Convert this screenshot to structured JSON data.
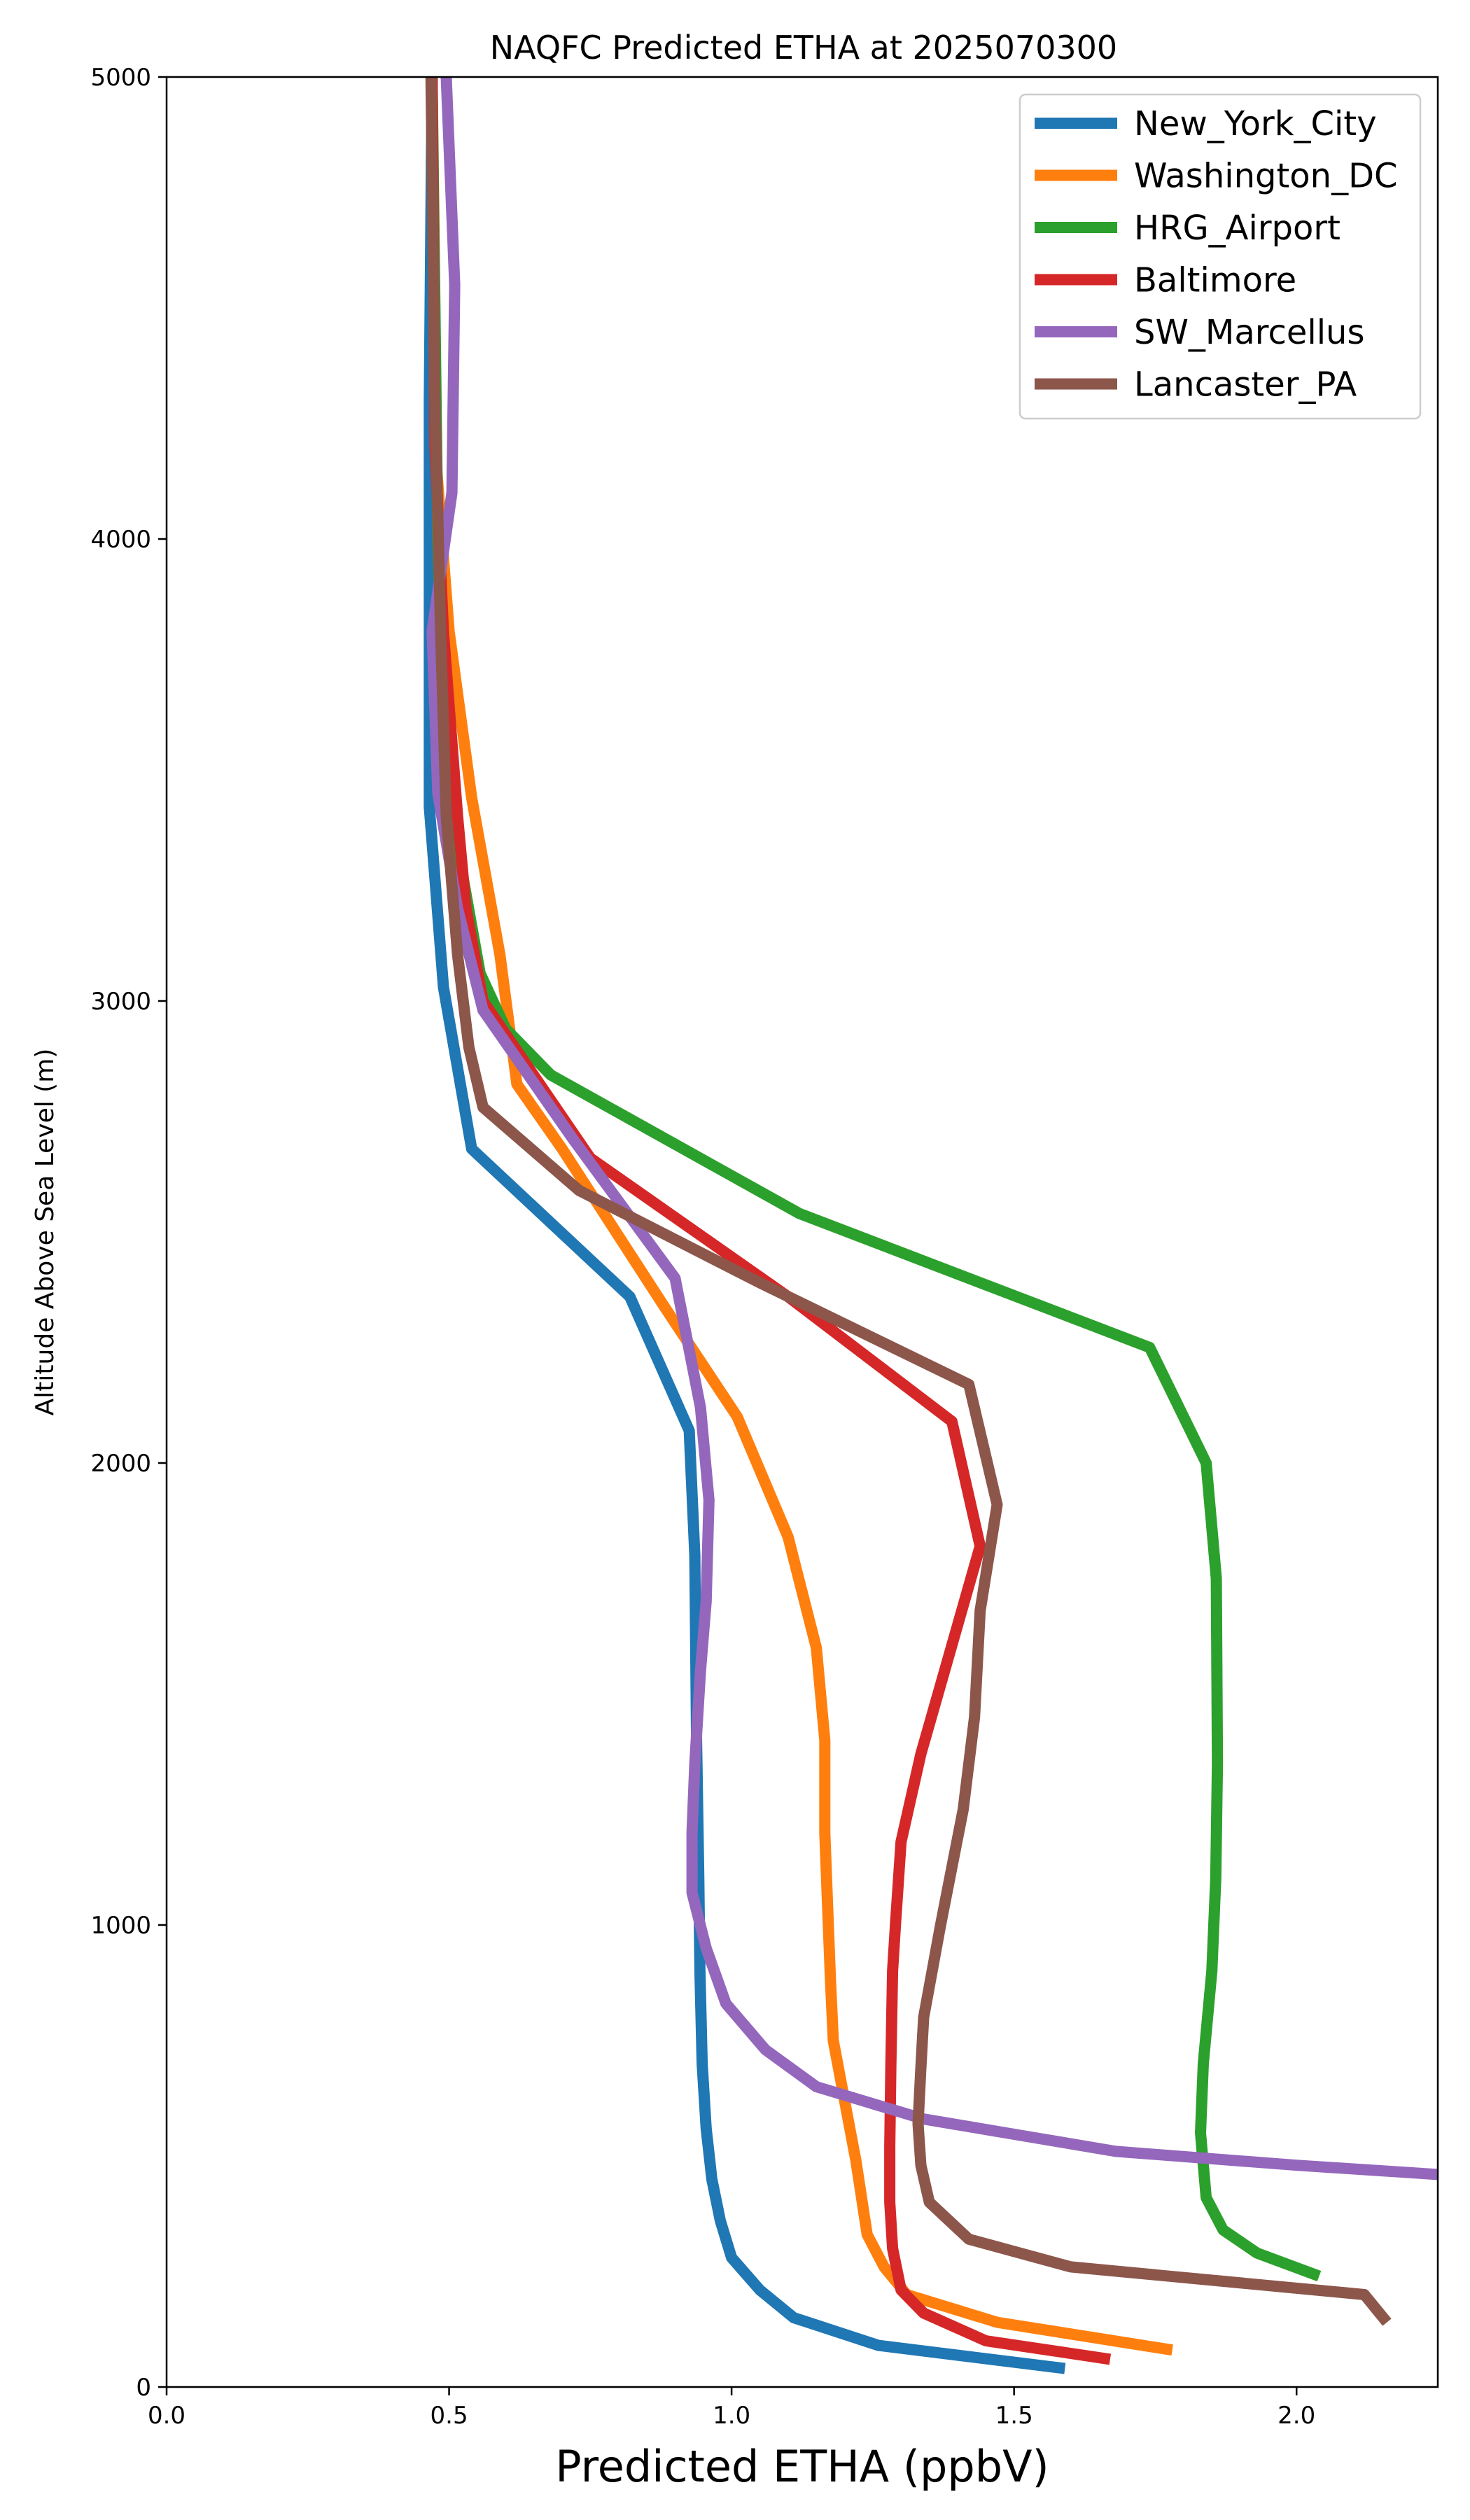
{
  "chart_data": {
    "type": "line",
    "title": "NAQFC Predicted ETHA at 2025070300",
    "xlabel": "Predicted ETHA (ppbV)",
    "ylabel": "Altitude Above Sea Level (m)",
    "xlim": [
      0.0,
      2.25
    ],
    "ylim": [
      0,
      5000
    ],
    "xticks": [
      "0.0",
      "0.5",
      "1.0",
      "1.5",
      "2.0"
    ],
    "yticks": [
      "0",
      "1000",
      "2000",
      "3000",
      "4000",
      "5000"
    ],
    "grid": false,
    "legend_position": "top-right",
    "series": [
      {
        "name": "New_York_City",
        "color": "#1f77b4",
        "points": [
          [
            1.59,
            40
          ],
          [
            1.26,
            90
          ],
          [
            1.11,
            150
          ],
          [
            1.05,
            210
          ],
          [
            1.0,
            280
          ],
          [
            0.98,
            360
          ],
          [
            0.965,
            450
          ],
          [
            0.955,
            560
          ],
          [
            0.948,
            700
          ],
          [
            0.944,
            900
          ],
          [
            0.942,
            1100
          ],
          [
            0.938,
            1400
          ],
          [
            0.935,
            1800
          ],
          [
            0.925,
            2070
          ],
          [
            0.82,
            2360
          ],
          [
            0.54,
            2680
          ],
          [
            0.49,
            3030
          ],
          [
            0.465,
            3420
          ],
          [
            0.465,
            4300
          ],
          [
            0.47,
            5000
          ]
        ]
      },
      {
        "name": "Washington_DC",
        "color": "#ff7f0e",
        "points": [
          [
            1.78,
            80
          ],
          [
            1.47,
            140
          ],
          [
            1.31,
            200
          ],
          [
            1.27,
            260
          ],
          [
            1.24,
            330
          ],
          [
            1.22,
            490
          ],
          [
            1.2,
            620
          ],
          [
            1.18,
            750
          ],
          [
            1.175,
            880
          ],
          [
            1.17,
            1040
          ],
          [
            1.165,
            1200
          ],
          [
            1.165,
            1400
          ],
          [
            1.15,
            1600
          ],
          [
            1.1,
            1840
          ],
          [
            1.01,
            2100
          ],
          [
            0.88,
            2340
          ],
          [
            0.7,
            2680
          ],
          [
            0.62,
            2820
          ],
          [
            0.59,
            3100
          ],
          [
            0.54,
            3440
          ],
          [
            0.5,
            3800
          ],
          [
            0.475,
            4200
          ],
          [
            0.47,
            5000
          ]
        ]
      },
      {
        "name": "HRG_Airport",
        "color": "#2ca02c",
        "points": [
          [
            2.04,
            240
          ],
          [
            1.93,
            290
          ],
          [
            1.87,
            340
          ],
          [
            1.84,
            410
          ],
          [
            1.83,
            550
          ],
          [
            1.835,
            700
          ],
          [
            1.85,
            900
          ],
          [
            1.857,
            1100
          ],
          [
            1.86,
            1350
          ],
          [
            1.858,
            1750
          ],
          [
            1.84,
            2000
          ],
          [
            1.74,
            2250
          ],
          [
            1.12,
            2540
          ],
          [
            0.68,
            2840
          ],
          [
            0.6,
            2940
          ],
          [
            0.555,
            3060
          ],
          [
            0.52,
            3300
          ],
          [
            0.49,
            3600
          ],
          [
            0.48,
            4000
          ],
          [
            0.47,
            5000
          ]
        ]
      },
      {
        "name": "Baltimore",
        "color": "#d62728",
        "points": [
          [
            1.67,
            60
          ],
          [
            1.45,
            100
          ],
          [
            1.34,
            160
          ],
          [
            1.3,
            210
          ],
          [
            1.285,
            300
          ],
          [
            1.28,
            400
          ],
          [
            1.28,
            520
          ],
          [
            1.282,
            700
          ],
          [
            1.285,
            900
          ],
          [
            1.29,
            1000
          ],
          [
            1.3,
            1180
          ],
          [
            1.335,
            1370
          ],
          [
            1.44,
            1820
          ],
          [
            1.39,
            2090
          ],
          [
            1.1,
            2360
          ],
          [
            0.75,
            2660
          ],
          [
            0.56,
            3000
          ],
          [
            0.53,
            3200
          ],
          [
            0.515,
            3400
          ],
          [
            0.49,
            3800
          ],
          [
            0.475,
            4200
          ],
          [
            0.47,
            5000
          ]
        ]
      },
      {
        "name": "SW_Marcellus",
        "color": "#9467bd",
        "points": [
          [
            2.25,
            460
          ],
          [
            2.0,
            480
          ],
          [
            1.68,
            510
          ],
          [
            1.34,
            580
          ],
          [
            1.15,
            650
          ],
          [
            1.06,
            730
          ],
          [
            0.99,
            830
          ],
          [
            0.955,
            950
          ],
          [
            0.93,
            1070
          ],
          [
            0.93,
            1200
          ],
          [
            0.935,
            1350
          ],
          [
            0.945,
            1550
          ],
          [
            0.955,
            1700
          ],
          [
            0.96,
            1920
          ],
          [
            0.945,
            2120
          ],
          [
            0.9,
            2400
          ],
          [
            0.72,
            2700
          ],
          [
            0.56,
            2980
          ],
          [
            0.515,
            3200
          ],
          [
            0.48,
            3450
          ],
          [
            0.47,
            3800
          ],
          [
            0.505,
            4100
          ],
          [
            0.51,
            4550
          ],
          [
            0.495,
            5000
          ]
        ]
      },
      {
        "name": "Lancaster_PA",
        "color": "#8c564b",
        "points": [
          [
            2.16,
            140
          ],
          [
            2.12,
            200
          ],
          [
            1.6,
            260
          ],
          [
            1.42,
            320
          ],
          [
            1.35,
            400
          ],
          [
            1.335,
            480
          ],
          [
            1.33,
            570
          ],
          [
            1.335,
            690
          ],
          [
            1.34,
            800
          ],
          [
            1.37,
            1000
          ],
          [
            1.41,
            1250
          ],
          [
            1.43,
            1450
          ],
          [
            1.44,
            1680
          ],
          [
            1.47,
            1910
          ],
          [
            1.42,
            2170
          ],
          [
            1.05,
            2390
          ],
          [
            0.73,
            2590
          ],
          [
            0.56,
            2770
          ],
          [
            0.535,
            2900
          ],
          [
            0.515,
            3100
          ],
          [
            0.495,
            3400
          ],
          [
            0.485,
            3800
          ],
          [
            0.475,
            4300
          ],
          [
            0.468,
            5000
          ]
        ]
      }
    ]
  }
}
